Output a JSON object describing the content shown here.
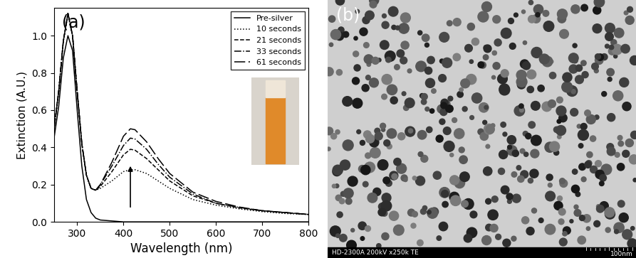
{
  "chart_data": {
    "type": "line",
    "annotations": [
      "(a)"
    ],
    "x_label": "Wavelength (nm)",
    "y_label": "Extinction (A.U.)",
    "x": [
      250,
      260,
      270,
      280,
      290,
      300,
      310,
      320,
      330,
      340,
      350,
      375,
      400,
      415,
      425,
      450,
      475,
      500,
      550,
      600,
      650,
      700,
      750,
      800
    ],
    "series": [
      {
        "name": "Pre-silver",
        "color": "#000000",
        "line_style": "solid",
        "values": [
          0.45,
          0.62,
          0.88,
          1.0,
          0.92,
          0.6,
          0.3,
          0.12,
          0.05,
          0.02,
          0.01,
          0.005,
          0.0,
          0.0,
          0.0,
          0.0,
          0.0,
          0.0,
          0.0,
          0.0,
          0.0,
          0.0,
          0.0,
          0.0
        ]
      },
      {
        "name": "10 seconds",
        "color": "#000000",
        "line_style": "dotted",
        "values": [
          0.5,
          0.7,
          0.97,
          1.11,
          1.0,
          0.7,
          0.42,
          0.25,
          0.18,
          0.17,
          0.18,
          0.22,
          0.27,
          0.28,
          0.28,
          0.26,
          0.22,
          0.18,
          0.12,
          0.09,
          0.07,
          0.055,
          0.045,
          0.04
        ]
      },
      {
        "name": "21 seconds",
        "color": "#000000",
        "line_style": "dashed",
        "values": [
          0.5,
          0.7,
          0.97,
          1.12,
          1.0,
          0.7,
          0.42,
          0.25,
          0.18,
          0.17,
          0.19,
          0.27,
          0.36,
          0.39,
          0.385,
          0.34,
          0.28,
          0.22,
          0.14,
          0.1,
          0.075,
          0.06,
          0.05,
          0.04
        ]
      },
      {
        "name": "33 seconds",
        "color": "#000000",
        "line_style": "dashdot",
        "values": [
          0.5,
          0.7,
          0.97,
          1.12,
          1.0,
          0.7,
          0.42,
          0.25,
          0.18,
          0.17,
          0.2,
          0.3,
          0.41,
          0.45,
          0.445,
          0.39,
          0.31,
          0.24,
          0.15,
          0.1,
          0.078,
          0.06,
          0.05,
          0.04
        ]
      },
      {
        "name": "61 seconds",
        "color": "#000000",
        "line_style": "long_dashed",
        "values": [
          0.5,
          0.7,
          0.97,
          1.12,
          1.0,
          0.7,
          0.42,
          0.25,
          0.18,
          0.17,
          0.2,
          0.32,
          0.46,
          0.5,
          0.495,
          0.43,
          0.34,
          0.26,
          0.16,
          0.11,
          0.08,
          0.06,
          0.05,
          0.04
        ]
      }
    ],
    "xlim": [
      250,
      800
    ],
    "xticks": [
      300,
      400,
      500,
      600,
      700,
      800
    ],
    "ylim": [
      0,
      1.15
    ],
    "yticks": [
      {
        "value": 0,
        "label": "0.0"
      },
      0.2,
      0.4,
      0.6,
      0.8,
      {
        "value": 1,
        "label": "1.0"
      }
    ],
    "legend": "upper right",
    "grid": false
  },
  "image_panel": {
    "panel_label": "(b)",
    "caption": "HD-2300A 200kV x250k TE",
    "scale_bar": "100nm"
  }
}
